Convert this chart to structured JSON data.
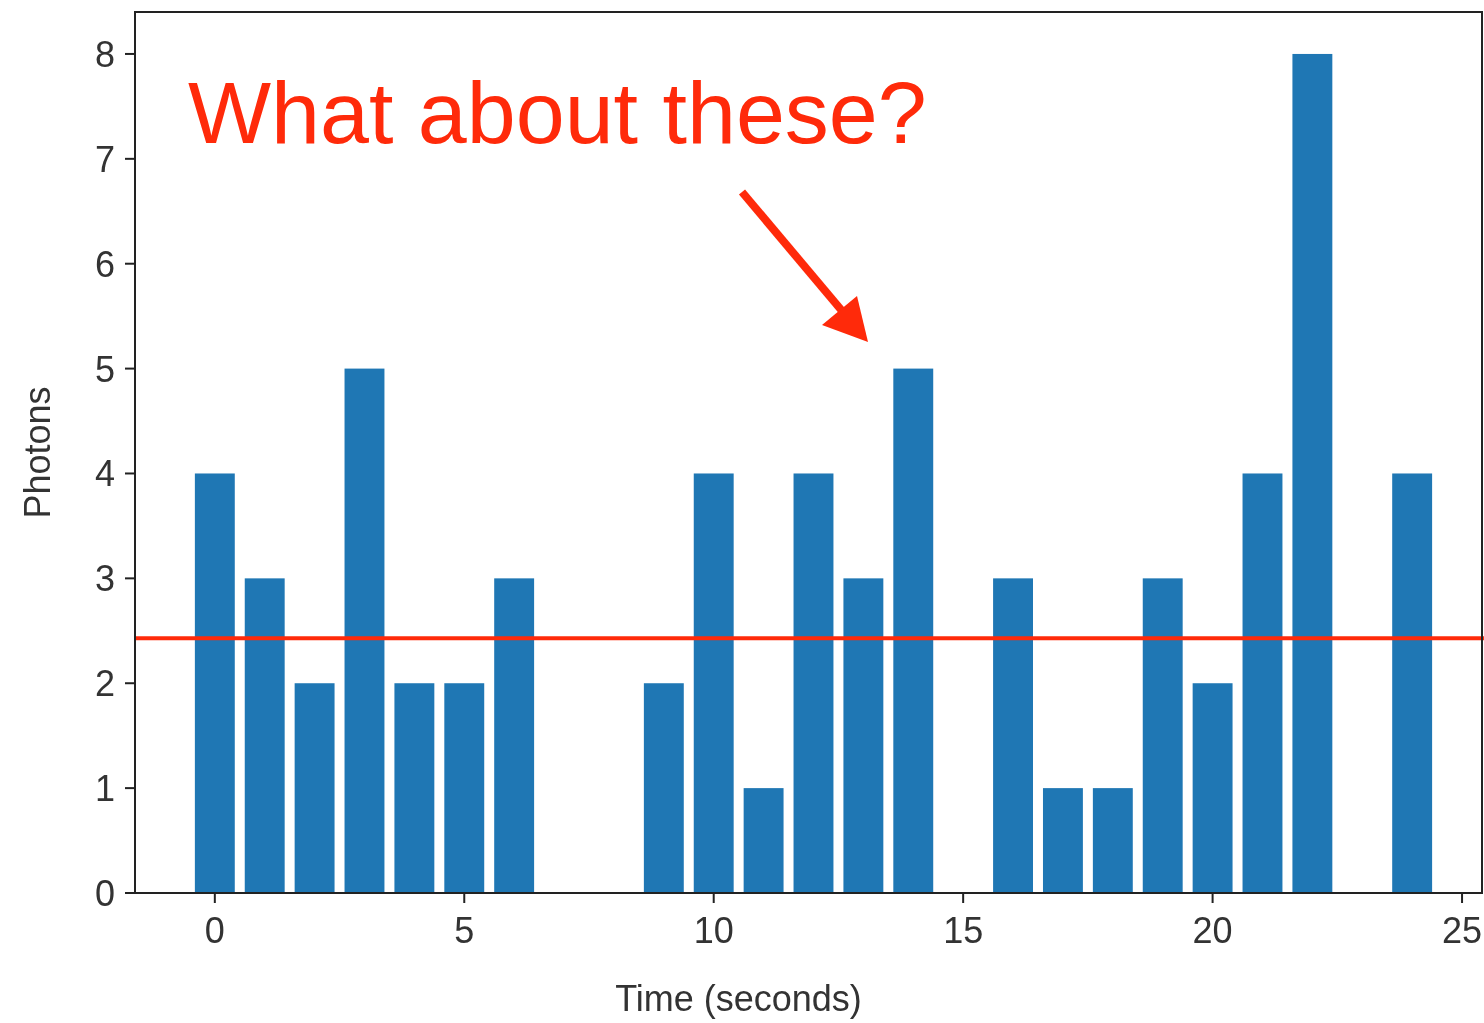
{
  "chart_data": {
    "type": "bar",
    "xlabel": "Time (seconds)",
    "ylabel": "Photons",
    "x": [
      0,
      1,
      2,
      3,
      4,
      5,
      6,
      9,
      10,
      11,
      12,
      13,
      14,
      16,
      17,
      18,
      19,
      20,
      21,
      22,
      24
    ],
    "values": [
      4,
      3,
      2,
      5,
      2,
      2,
      3,
      2,
      4,
      1,
      4,
      3,
      5,
      3,
      1,
      1,
      3,
      2,
      4,
      8,
      4
    ],
    "color": "#1f77b4",
    "xlim": [
      -1.6,
      25.4
    ],
    "xticks": [
      0,
      5,
      10,
      15,
      20,
      25
    ],
    "ylim": [
      0,
      8.4
    ],
    "yticks": [
      0,
      1,
      2,
      3,
      4,
      5,
      6,
      7,
      8
    ],
    "ref_lines": [
      {
        "axis": "y",
        "value": 2.43,
        "color": "#ff2a0a"
      }
    ],
    "annotations": [
      "What about these?"
    ],
    "grid": false
  }
}
